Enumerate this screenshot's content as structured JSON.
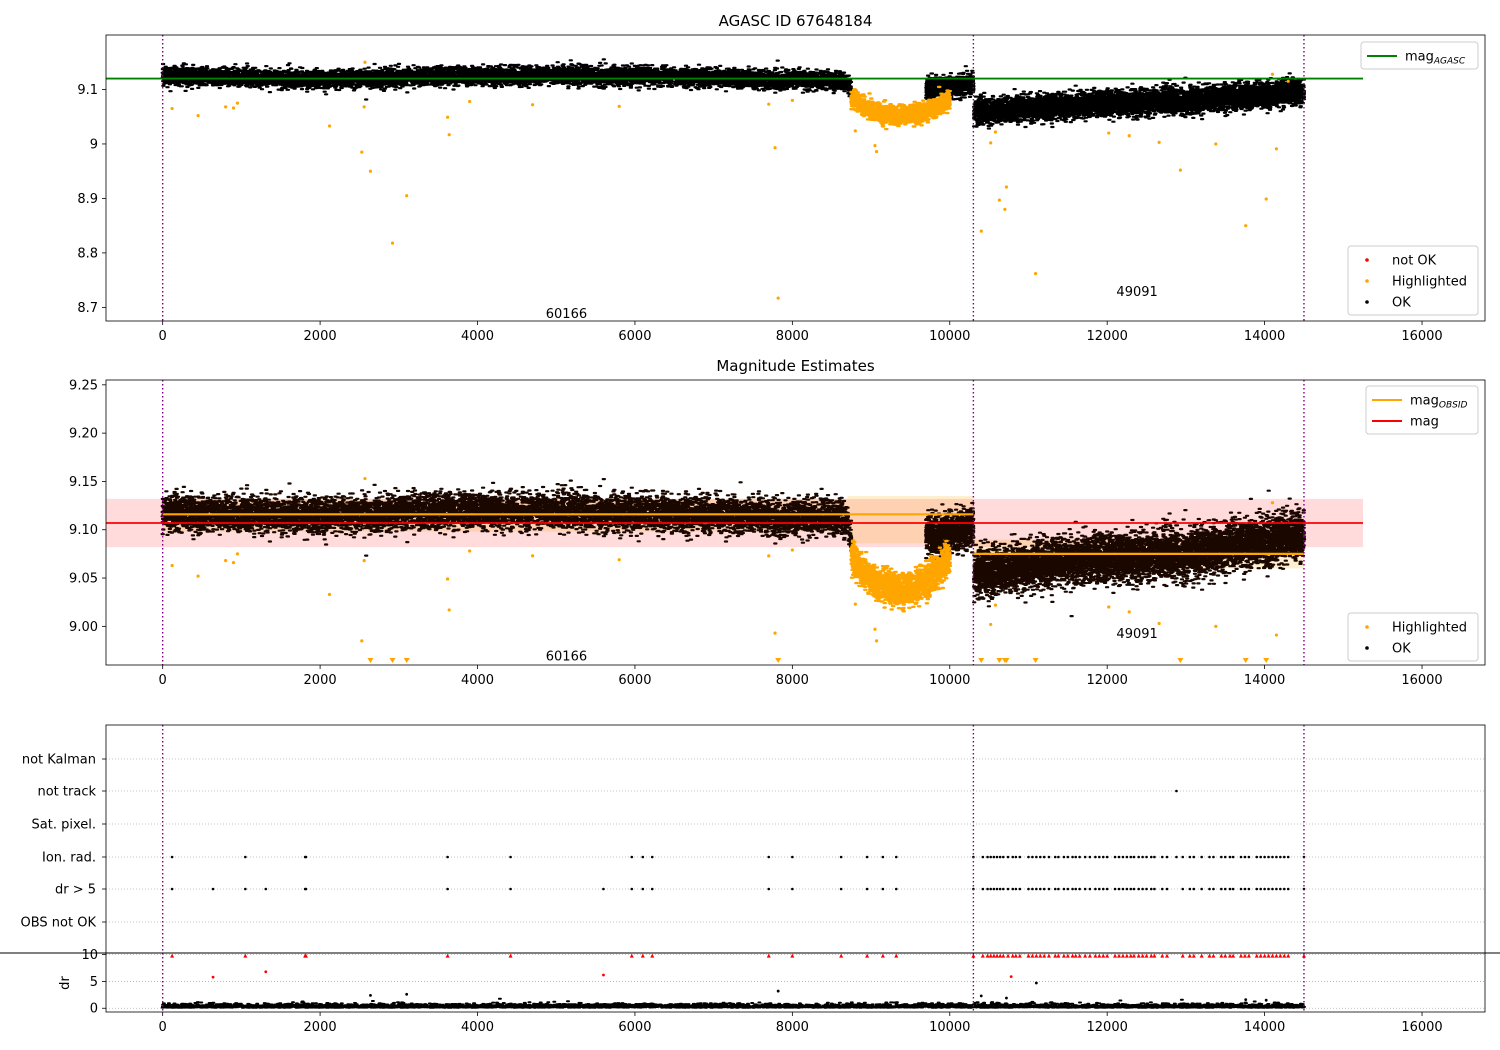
{
  "chart_data": [
    {
      "type": "scatter",
      "title": "AGASC ID 67648184",
      "xlim": [
        -720,
        16800
      ],
      "ylim": [
        8.675,
        9.2
      ],
      "x_ticks": [
        0,
        2000,
        4000,
        6000,
        8000,
        10000,
        12000,
        14000,
        16000
      ],
      "y_ticks": [
        8.7,
        8.8,
        8.9,
        9.0,
        9.1
      ],
      "obs_boundaries": [
        0,
        10300,
        14500
      ],
      "obs_labels": [
        {
          "text": "60166",
          "x": 5130,
          "y": 8.69
        },
        {
          "text": "49091",
          "x": 12380,
          "y": 8.73
        }
      ],
      "lines": [
        {
          "name": "mag_AGASC",
          "y": 9.12,
          "x": [
            -720,
            15250
          ],
          "color": "#008000"
        }
      ],
      "series": [
        {
          "name": "not OK",
          "color": "#ff0000"
        },
        {
          "name": "Highlighted",
          "color": "#ffa500"
        },
        {
          "name": "OK",
          "color": "#000000"
        }
      ],
      "ok_trend": [
        {
          "x": 0,
          "y": 9.125
        },
        {
          "x": 2000,
          "y": 9.118
        },
        {
          "x": 4000,
          "y": 9.125
        },
        {
          "x": 6000,
          "y": 9.125
        },
        {
          "x": 8000,
          "y": 9.118
        },
        {
          "x": 8700,
          "y": 9.115
        },
        {
          "x": 8750,
          "y": 9.095
        },
        {
          "x": 10000,
          "y": 9.105
        },
        {
          "x": 10300,
          "y": 9.11
        },
        {
          "x": 10310,
          "y": 9.06
        },
        {
          "x": 11500,
          "y": 9.07
        },
        {
          "x": 13000,
          "y": 9.08
        },
        {
          "x": 14500,
          "y": 9.095
        }
      ],
      "highlight_dip": {
        "x_start": 8750,
        "x_end": 10000,
        "y_center": 9.07,
        "y_depth": 9.05
      },
      "outliers": [
        {
          "x": 120,
          "y": 9.065
        },
        {
          "x": 450,
          "y": 9.052
        },
        {
          "x": 800,
          "y": 9.068
        },
        {
          "x": 900,
          "y": 9.066
        },
        {
          "x": 950,
          "y": 9.075
        },
        {
          "x": 2120,
          "y": 9.033
        },
        {
          "x": 2530,
          "y": 8.985
        },
        {
          "x": 2560,
          "y": 9.068
        },
        {
          "x": 2640,
          "y": 8.95
        },
        {
          "x": 2920,
          "y": 8.818
        },
        {
          "x": 3100,
          "y": 8.905
        },
        {
          "x": 3620,
          "y": 9.049
        },
        {
          "x": 3640,
          "y": 9.017
        },
        {
          "x": 3900,
          "y": 9.078
        },
        {
          "x": 4700,
          "y": 9.072
        },
        {
          "x": 5800,
          "y": 9.069
        },
        {
          "x": 7700,
          "y": 9.073
        },
        {
          "x": 7780,
          "y": 8.993
        },
        {
          "x": 7820,
          "y": 8.717
        },
        {
          "x": 8000,
          "y": 9.08
        },
        {
          "x": 8800,
          "y": 9.024
        },
        {
          "x": 9050,
          "y": 8.997
        },
        {
          "x": 9070,
          "y": 8.986
        },
        {
          "x": 10400,
          "y": 8.84
        },
        {
          "x": 10520,
          "y": 9.002
        },
        {
          "x": 10580,
          "y": 9.022
        },
        {
          "x": 10630,
          "y": 8.897
        },
        {
          "x": 10700,
          "y": 8.88
        },
        {
          "x": 10720,
          "y": 8.921
        },
        {
          "x": 11090,
          "y": 8.762
        },
        {
          "x": 12020,
          "y": 9.02
        },
        {
          "x": 12280,
          "y": 9.015
        },
        {
          "x": 12660,
          "y": 9.003
        },
        {
          "x": 12930,
          "y": 8.952
        },
        {
          "x": 13380,
          "y": 9.0
        },
        {
          "x": 13760,
          "y": 8.85
        },
        {
          "x": 14020,
          "y": 8.899
        },
        {
          "x": 14150,
          "y": 8.991
        },
        {
          "x": 14100,
          "y": 9.128
        },
        {
          "x": 14300,
          "y": 9.115
        },
        {
          "x": 2570,
          "y": 9.15
        }
      ],
      "legend_top": [
        "mag_AGASC"
      ],
      "legend_bottom": [
        "not OK",
        "Highlighted",
        "OK"
      ]
    },
    {
      "type": "scatter",
      "title": "Magnitude Estimates",
      "xlim": [
        -720,
        16800
      ],
      "ylim": [
        8.96,
        9.255
      ],
      "x_ticks": [
        0,
        2000,
        4000,
        6000,
        8000,
        10000,
        12000,
        14000,
        16000
      ],
      "y_ticks": [
        9.0,
        9.05,
        9.1,
        9.15,
        9.2,
        9.25
      ],
      "y_tick_labels": [
        "9.00",
        "9.05",
        "9.10",
        "9.15",
        "9.20",
        "9.25"
      ],
      "obs_boundaries": [
        0,
        10300,
        14500
      ],
      "obs_labels": [
        {
          "text": "60166",
          "x": 5130,
          "y": 8.97
        },
        {
          "text": "49091",
          "x": 12380,
          "y": 8.993
        }
      ],
      "mag_band": {
        "x": [
          -720,
          15250
        ],
        "y_low": 9.082,
        "y_high": 9.132,
        "color": "#ffcccc"
      },
      "mag_obsid_bands": [
        {
          "x": [
            0,
            8700
          ],
          "y_low": 9.098,
          "y_high": 9.132
        },
        {
          "x": [
            8700,
            10300
          ],
          "y_low": 9.086,
          "y_high": 9.135
        },
        {
          "x": [
            10300,
            14500
          ],
          "y_low": 9.06,
          "y_high": 9.09
        }
      ],
      "lines": [
        {
          "name": "mag",
          "y": 9.107,
          "x": [
            -720,
            15250
          ],
          "color": "#ff0000"
        },
        {
          "name": "mag_OBSID",
          "segments": [
            {
              "x": [
                0,
                10300
              ],
              "y": 9.116
            },
            {
              "x": [
                10300,
                14500
              ],
              "y": 9.075
            }
          ],
          "color": "#ffa500"
        }
      ],
      "series": [
        {
          "name": "Highlighted",
          "color": "#ffa500"
        },
        {
          "name": "OK",
          "color": "#000000"
        }
      ],
      "ok_trend": [
        {
          "x": 0,
          "y": 9.118
        },
        {
          "x": 2000,
          "y": 9.115
        },
        {
          "x": 4000,
          "y": 9.12
        },
        {
          "x": 6000,
          "y": 9.118
        },
        {
          "x": 8000,
          "y": 9.113
        },
        {
          "x": 8700,
          "y": 9.112
        },
        {
          "x": 8750,
          "y": 9.088
        },
        {
          "x": 10000,
          "y": 9.095
        },
        {
          "x": 10300,
          "y": 9.105
        },
        {
          "x": 10310,
          "y": 9.055
        },
        {
          "x": 11500,
          "y": 9.068
        },
        {
          "x": 13000,
          "y": 9.075
        },
        {
          "x": 14500,
          "y": 9.095
        }
      ],
      "highlight_dip": {
        "x_start": 8750,
        "x_end": 10000,
        "y_center": 9.06,
        "y_depth": 9.035
      },
      "outliers": [
        {
          "x": 120,
          "y": 9.063
        },
        {
          "x": 450,
          "y": 9.052
        },
        {
          "x": 800,
          "y": 9.068
        },
        {
          "x": 900,
          "y": 9.066
        },
        {
          "x": 950,
          "y": 9.075
        },
        {
          "x": 2120,
          "y": 9.033
        },
        {
          "x": 2530,
          "y": 8.985
        },
        {
          "x": 2560,
          "y": 9.068
        },
        {
          "x": 3620,
          "y": 9.049
        },
        {
          "x": 3640,
          "y": 9.017
        },
        {
          "x": 3900,
          "y": 9.078
        },
        {
          "x": 4700,
          "y": 9.073
        },
        {
          "x": 5800,
          "y": 9.069
        },
        {
          "x": 7700,
          "y": 9.073
        },
        {
          "x": 7780,
          "y": 8.993
        },
        {
          "x": 8000,
          "y": 9.079
        },
        {
          "x": 8800,
          "y": 9.023
        },
        {
          "x": 9050,
          "y": 8.997
        },
        {
          "x": 9070,
          "y": 8.985
        },
        {
          "x": 10520,
          "y": 9.002
        },
        {
          "x": 10580,
          "y": 9.022
        },
        {
          "x": 12020,
          "y": 9.02
        },
        {
          "x": 12280,
          "y": 9.015
        },
        {
          "x": 12660,
          "y": 9.003
        },
        {
          "x": 13380,
          "y": 9.0
        },
        {
          "x": 14150,
          "y": 8.991
        },
        {
          "x": 14100,
          "y": 9.128
        },
        {
          "x": 2570,
          "y": 9.153
        }
      ],
      "below_range_markers": [
        2640,
        2920,
        3100,
        7820,
        10400,
        10630,
        10700,
        10720,
        11090,
        12930,
        13760,
        14020
      ],
      "legend_top": [
        "mag_OBSID",
        "mag"
      ],
      "legend_bottom": [
        "Highlighted",
        "OK"
      ]
    },
    {
      "type": "scatter",
      "title": "",
      "xlim": [
        -720,
        16800
      ],
      "x_ticks": [
        0,
        2000,
        4000,
        6000,
        8000,
        10000,
        12000,
        14000,
        16000
      ],
      "obs_boundaries": [
        0,
        10300,
        14500
      ],
      "categories": [
        "not Kalman",
        "not track",
        "Sat. pixel.",
        "Ion. rad.",
        "dr > 5",
        "OBS not OK"
      ],
      "flag_points": {
        "not track": [
          12880
        ],
        "Ion. rad.": [
          120,
          1050,
          1810,
          1820,
          3620,
          4420,
          5960,
          6100,
          6220,
          7700,
          8000,
          8620,
          8950,
          9150,
          9320,
          10300,
          10420,
          10480,
          10520,
          10560,
          10600,
          10640,
          10680,
          10740,
          10800,
          10840,
          10890,
          11000,
          11050,
          11100,
          11150,
          11200,
          11260,
          11340,
          11380,
          11450,
          11500,
          11560,
          11600,
          11650,
          11720,
          11780,
          11850,
          11900,
          11950,
          12000,
          12100,
          12150,
          12200,
          12250,
          12300,
          12340,
          12400,
          12450,
          12500,
          12560,
          12600,
          12700,
          12760,
          12880,
          12960,
          13050,
          13100,
          13200,
          13300,
          13350,
          13450,
          13500,
          13560,
          13600,
          13700,
          13750,
          13800,
          13900,
          13950,
          14000,
          14050,
          14100,
          14150,
          14200,
          14250,
          14300,
          14500
        ],
        "dr > 5": [
          120,
          640,
          1050,
          1310,
          1810,
          1820,
          3620,
          4420,
          5600,
          5960,
          6100,
          6220,
          7700,
          8000,
          8620,
          8950,
          9150,
          9320,
          10300,
          10420,
          10480,
          10520,
          10560,
          10600,
          10640,
          10680,
          10740,
          10800,
          10840,
          10890,
          11000,
          11050,
          11100,
          11150,
          11200,
          11260,
          11340,
          11380,
          11450,
          11500,
          11560,
          11600,
          11650,
          11720,
          11780,
          11850,
          11900,
          11950,
          12000,
          12100,
          12150,
          12200,
          12250,
          12300,
          12340,
          12400,
          12450,
          12500,
          12560,
          12600,
          12700,
          12760,
          12960,
          13050,
          13100,
          13200,
          13300,
          13350,
          13450,
          13500,
          13560,
          13600,
          13700,
          13750,
          13800,
          13900,
          13950,
          14000,
          14050,
          14100,
          14150,
          14200,
          14250,
          14300,
          14500
        ]
      },
      "dr": {
        "ylabel": "dr",
        "y_ticks": [
          0,
          5,
          10
        ],
        "ylim": [
          -0.7,
          10.3
        ],
        "high_points_x": [
          120,
          1050,
          1810,
          1820,
          3620,
          4420,
          5960,
          6100,
          6220,
          7700,
          8000,
          8620,
          8950,
          9150,
          9320,
          10300,
          10420,
          10480,
          10520,
          10560,
          10600,
          10640,
          10680,
          10740,
          10800,
          10840,
          10890,
          11000,
          11050,
          11100,
          11150,
          11200,
          11260,
          11340,
          11380,
          11450,
          11500,
          11560,
          11600,
          11650,
          11720,
          11780,
          11850,
          11900,
          11950,
          12000,
          12100,
          12150,
          12200,
          12250,
          12300,
          12340,
          12400,
          12450,
          12500,
          12560,
          12600,
          12700,
          12760,
          12960,
          13050,
          13100,
          13200,
          13300,
          13350,
          13450,
          13500,
          13560,
          13600,
          13700,
          13750,
          13800,
          13900,
          13950,
          14000,
          14050,
          14100,
          14150,
          14200,
          14250,
          14300,
          14500
        ],
        "mid_points": [
          {
            "x": 640,
            "y": 5.8
          },
          {
            "x": 1310,
            "y": 6.8
          },
          {
            "x": 5600,
            "y": 6.2
          },
          {
            "x": 10780,
            "y": 5.9
          },
          {
            "x": 11100,
            "y": 4.7
          },
          {
            "x": 7820,
            "y": 3.2
          },
          {
            "x": 2640,
            "y": 2.4
          },
          {
            "x": 3100,
            "y": 2.6
          },
          {
            "x": 10400,
            "y": 2.3
          },
          {
            "x": 10720,
            "y": 1.9
          },
          {
            "x": 13760,
            "y": 1.6
          },
          {
            "x": 14020,
            "y": 1.5
          }
        ]
      }
    }
  ]
}
